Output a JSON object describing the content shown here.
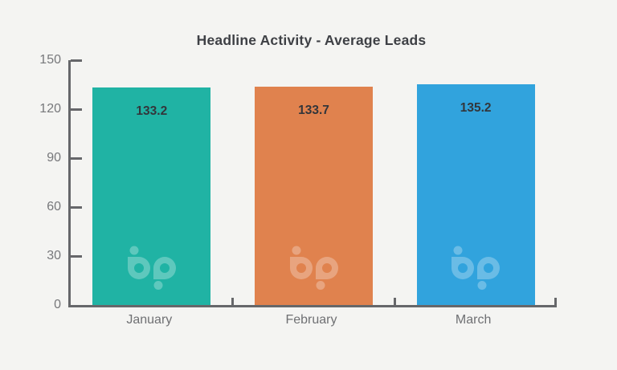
{
  "chart_data": {
    "type": "bar",
    "title": "Headline Activity - Average Leads",
    "categories": [
      "January",
      "February",
      "March"
    ],
    "values": [
      133.2,
      133.7,
      135.2
    ],
    "value_labels": [
      "133.2",
      "133.7",
      "135.2"
    ],
    "bar_colors": [
      "#20b3a4",
      "#e0824e",
      "#31a3dd"
    ],
    "y_ticks": [
      0,
      30,
      60,
      90,
      120,
      150
    ],
    "ylim": [
      0,
      150
    ],
    "xlabel": "",
    "ylabel": "",
    "grid": false,
    "legend": false,
    "watermark_icon": "bp-logo",
    "colors": {
      "background": "#f4f4f2",
      "axis": "#66676a",
      "title_text": "#3e4045",
      "value_text": "#33363b",
      "y_tick_text": "#77787b",
      "x_tick_text": "#6f7073",
      "watermark": "rgba(255,255,255,0.28)"
    }
  }
}
